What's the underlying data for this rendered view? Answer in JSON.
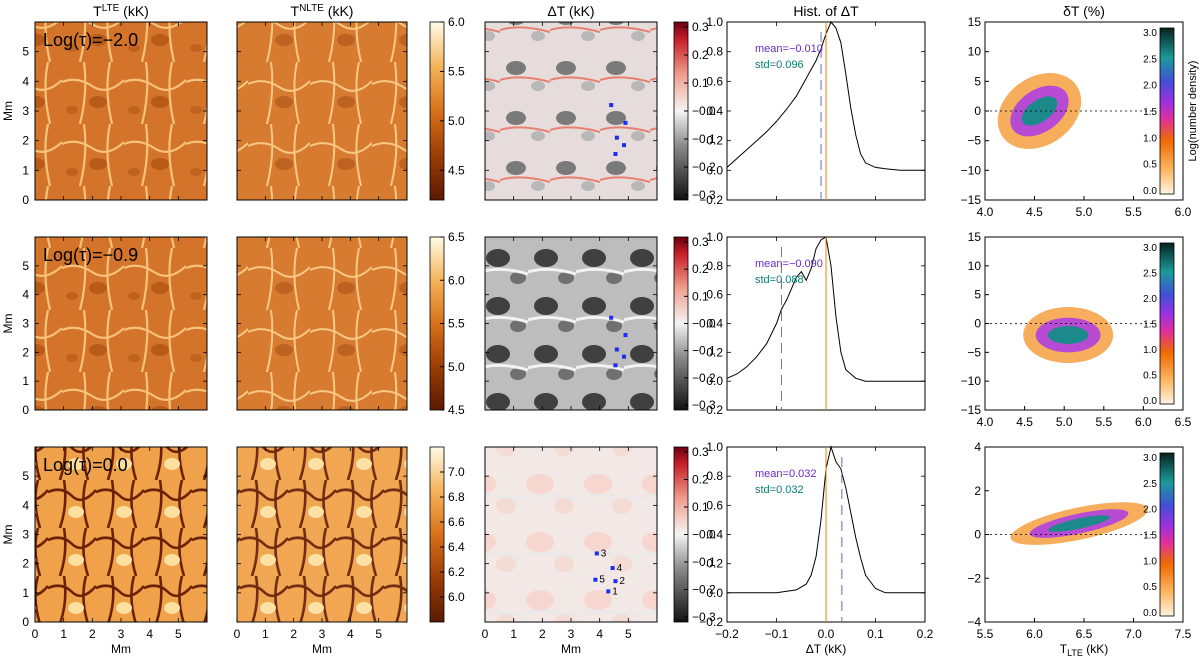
{
  "chart_data": {
    "type": "figure-grid",
    "column_titles": [
      "T",
      "T",
      "ΔT (kK)",
      "Hist. of ΔT",
      "δT (%)"
    ],
    "column_title_parts": {
      "lte_main": "T",
      "lte_sup": "LTE",
      "lte_unit": "(kK)",
      "nlte_main": "T",
      "nlte_sup": "NLTE",
      "nlte_unit": "(kK)"
    },
    "x_label_maps": "Mm",
    "x_label_dmap": "Mm",
    "x_label_hist": "ΔT (kK)",
    "x_label_scatter_main": "T",
    "x_label_scatter_sub": "LTE",
    "x_label_scatter_unit": "(kK)",
    "y_label_maps": "Mm",
    "density_cbar_label": "Log(number density)",
    "map_ticks": [
      "0",
      "1",
      "2",
      "3",
      "4",
      "5"
    ],
    "dmap_x_ticks": [
      "0",
      "1",
      "2",
      "3",
      "4",
      "5"
    ],
    "rows": [
      {
        "tau_label": "Log(τ)=−2.0",
        "temp_cbar": {
          "ticks": [
            "4.5",
            "5.0",
            "5.5",
            "6.0"
          ],
          "range": [
            4.2,
            6.0
          ]
        },
        "dT_cbar": {
          "ticks": [
            "0.3",
            "0.2",
            "0.1",
            "−0.0",
            "−0.1",
            "−0.2",
            "−0.3"
          ]
        },
        "hist": {
          "mean_label": "mean=−0.010",
          "std_label": "std=0.096",
          "mean": -0.01,
          "xlim": [
            -0.2,
            0.2
          ],
          "ylim": [
            -0.2,
            1.0
          ],
          "y_ticks": [
            "1.0",
            "0.8",
            "0.6",
            "0.4",
            "0.2",
            "0.0",
            "−0.2"
          ],
          "x": [
            -0.2,
            -0.18,
            -0.16,
            -0.14,
            -0.12,
            -0.1,
            -0.08,
            -0.06,
            -0.04,
            -0.03,
            -0.02,
            -0.01,
            0.0,
            0.01,
            0.02,
            0.03,
            0.04,
            0.05,
            0.06,
            0.07,
            0.08,
            0.1,
            0.12,
            0.15,
            0.2
          ],
          "y": [
            0.02,
            0.08,
            0.14,
            0.2,
            0.26,
            0.33,
            0.41,
            0.5,
            0.62,
            0.68,
            0.74,
            0.82,
            0.92,
            1.0,
            0.96,
            0.86,
            0.65,
            0.42,
            0.24,
            0.11,
            0.05,
            0.02,
            0.01,
            0.0,
            0.0
          ]
        },
        "scatter": {
          "xlim": [
            4.0,
            6.0
          ],
          "ylim": [
            -15,
            15
          ],
          "x_ticks": [
            "4.0",
            "4.5",
            "5.0",
            "5.5",
            "6.0"
          ],
          "y_ticks": [
            "15",
            "10",
            "5",
            "0",
            "−5",
            "−10",
            "−15"
          ],
          "cbar_ticks": [
            "3.0",
            "2.5",
            "2.0",
            "1.5",
            "1.0",
            "0.5",
            "0.0"
          ]
        },
        "markers": [
          {
            "x": 4.4,
            "y": 3.2
          },
          {
            "x": 4.9,
            "y": 2.6
          },
          {
            "x": 4.6,
            "y": 2.1
          },
          {
            "x": 4.85,
            "y": 1.85
          },
          {
            "x": 4.55,
            "y": 1.55
          }
        ],
        "marker_labels": []
      },
      {
        "tau_label": "Log(τ)=−0.9",
        "temp_cbar": {
          "ticks": [
            "4.5",
            "5.0",
            "5.5",
            "6.0",
            "6.5"
          ],
          "range": [
            4.5,
            6.5
          ]
        },
        "dT_cbar": {
          "ticks": [
            "0.3",
            "0.2",
            "0.1",
            "−0.0",
            "−0.1",
            "−0.2",
            "−0.3"
          ]
        },
        "hist": {
          "mean_label": "mean=−0.090",
          "std_label": "std=0.088",
          "mean": -0.09,
          "xlim": [
            -0.2,
            0.2
          ],
          "ylim": [
            -0.2,
            1.0
          ],
          "y_ticks": [
            "1.0",
            "0.8",
            "0.6",
            "0.4",
            "0.2",
            "0.0",
            "−0.2"
          ],
          "x": [
            -0.2,
            -0.18,
            -0.16,
            -0.14,
            -0.12,
            -0.1,
            -0.09,
            -0.08,
            -0.07,
            -0.06,
            -0.05,
            -0.04,
            -0.03,
            -0.02,
            -0.01,
            0.0,
            0.01,
            0.02,
            0.03,
            0.04,
            0.06,
            0.08,
            0.12,
            0.2
          ],
          "y": [
            0.02,
            0.05,
            0.1,
            0.17,
            0.26,
            0.4,
            0.5,
            0.56,
            0.64,
            0.72,
            0.76,
            0.7,
            0.78,
            0.92,
            0.98,
            1.0,
            0.8,
            0.45,
            0.2,
            0.08,
            0.02,
            0.0,
            0.0,
            0.0
          ]
        },
        "scatter": {
          "xlim": [
            4.0,
            6.5
          ],
          "ylim": [
            -15,
            15
          ],
          "x_ticks": [
            "4.0",
            "4.5",
            "5.0",
            "5.5",
            "6.0",
            "6.5"
          ],
          "y_ticks": [
            "15",
            "10",
            "5",
            "0",
            "−5",
            "−10",
            "−15"
          ],
          "cbar_ticks": [
            "3.0",
            "2.5",
            "2.0",
            "1.5",
            "1.0",
            "0.5",
            "0.0"
          ]
        },
        "markers": [
          {
            "x": 4.4,
            "y": 3.2
          },
          {
            "x": 4.9,
            "y": 2.6
          },
          {
            "x": 4.6,
            "y": 2.1
          },
          {
            "x": 4.85,
            "y": 1.85
          },
          {
            "x": 4.55,
            "y": 1.55
          }
        ],
        "marker_labels": []
      },
      {
        "tau_label": "Log(τ)=0.0",
        "temp_cbar": {
          "ticks": [
            "6.0",
            "6.2",
            "6.4",
            "6.6",
            "6.8",
            "7.0"
          ],
          "range": [
            5.8,
            7.2
          ]
        },
        "dT_cbar": {
          "ticks": [
            "0.3",
            "0.2",
            "0.1",
            "−0.0",
            "−0.1",
            "−0.2",
            "−0.3"
          ]
        },
        "hist": {
          "mean_label": "mean=0.032",
          "std_label": "std=0.032",
          "mean": 0.032,
          "xlim": [
            -0.2,
            0.2
          ],
          "ylim": [
            -0.2,
            1.0
          ],
          "y_ticks": [
            "1.0",
            "0.8",
            "0.6",
            "0.4",
            "0.2",
            "0.0",
            "−0.2"
          ],
          "x_ticks": [
            "−0.2",
            "−0.1",
            "0.0",
            "0.1",
            "0.2"
          ],
          "x": [
            -0.2,
            -0.1,
            -0.06,
            -0.04,
            -0.03,
            -0.02,
            -0.01,
            0.0,
            0.01,
            0.02,
            0.03,
            0.04,
            0.05,
            0.06,
            0.07,
            0.08,
            0.1,
            0.12,
            0.2
          ],
          "y": [
            0.0,
            0.0,
            0.02,
            0.06,
            0.12,
            0.25,
            0.5,
            0.85,
            1.0,
            0.9,
            0.85,
            0.72,
            0.55,
            0.38,
            0.24,
            0.12,
            0.03,
            0.0,
            0.0
          ]
        },
        "scatter": {
          "xlim": [
            5.5,
            7.5
          ],
          "ylim": [
            -4,
            4
          ],
          "x_ticks": [
            "5.5",
            "6.0",
            "6.5",
            "7.0",
            "7.5"
          ],
          "y_ticks": [
            "4",
            "2",
            "0",
            "−2",
            "−4"
          ],
          "cbar_ticks": [
            "3.0",
            "2.5",
            "2.0",
            "1.5",
            "1.0",
            "0.5",
            "0.0"
          ]
        },
        "markers": [
          {
            "x": 4.3,
            "y": 1.05
          },
          {
            "x": 4.55,
            "y": 1.4
          },
          {
            "x": 3.9,
            "y": 2.35
          },
          {
            "x": 4.45,
            "y": 1.85
          },
          {
            "x": 3.85,
            "y": 1.45
          }
        ],
        "marker_labels": [
          "1",
          "2",
          "3",
          "4",
          "5"
        ]
      }
    ]
  }
}
